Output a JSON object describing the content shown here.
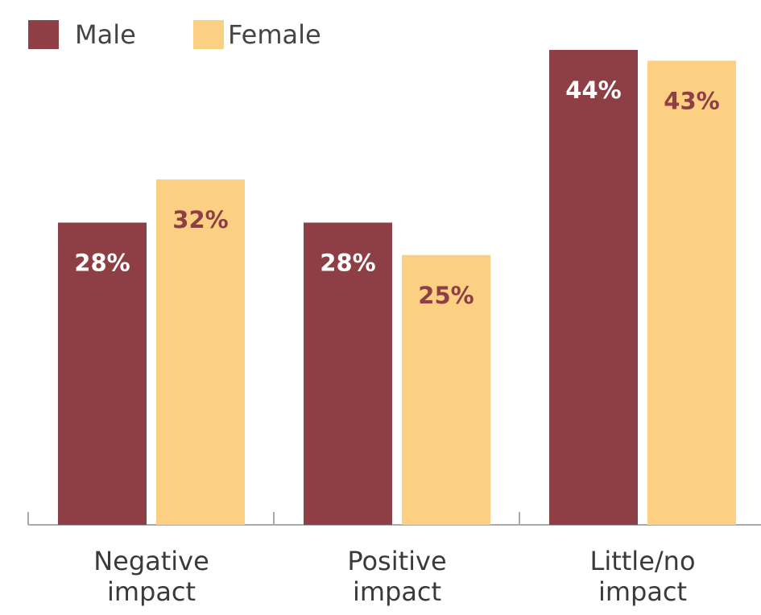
{
  "chart_data": {
    "type": "bar",
    "categories": [
      "Negative impact",
      "Positive impact",
      "Little/no impact"
    ],
    "series": [
      {
        "name": "Male",
        "color": "#8e3e45",
        "values": [
          28,
          28,
          44
        ],
        "value_labels": [
          "28%",
          "28%",
          "44%"
        ],
        "label_color": "#ffffff"
      },
      {
        "name": "Female",
        "color": "#fbd083",
        "values": [
          32,
          25,
          43
        ],
        "value_labels": [
          "32%",
          "25%",
          "43%"
        ],
        "label_color": "#8e3e45"
      }
    ],
    "legend": "top-left"
  }
}
